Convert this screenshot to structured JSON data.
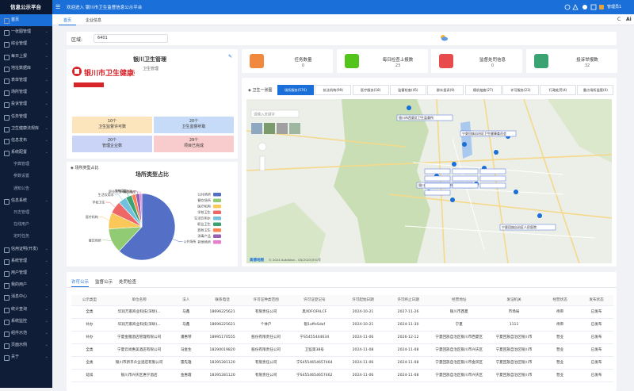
{
  "sidebar": {
    "title": "信息公示平台",
    "menu": [
      "首页",
      "一张图管理",
      "综合管理",
      "每日上报",
      "地址数据库",
      "表单管理",
      "场所管理",
      "投诉管理",
      "任务管理",
      "卫生健康法规库",
      "信息发布",
      "系统配置",
      "字典管理",
      "参数设置",
      "通知公告",
      "信息系统",
      "日志管理",
      "在线用户",
      "定时任务",
      "信用证明(开发)",
      "系统管理",
      "用户管理",
      "我的用户",
      "消息中心",
      "统计查询",
      "系统监控",
      "组件示范",
      "页面示例",
      "关于"
    ]
  },
  "header": {
    "welcome": "欢迎进入 银川市卫生监督信息公示平台",
    "user": "管理员1"
  },
  "tabs": [
    "首页",
    "企业信息"
  ],
  "filter": {
    "label": "区域:",
    "value": "6401"
  },
  "org": {
    "logo_text": "银川市卫生健康委员会",
    "name": "银川卫生管理",
    "sub": "卫生管理",
    "boxes": [
      {
        "value": "10个",
        "label": "卫生监督许可数"
      },
      {
        "value": "20个",
        "label": "卫生监督听取"
      },
      {
        "value": "20个",
        "label": "管理企业数"
      },
      {
        "value": "29个",
        "label": "项目已完成"
      }
    ]
  },
  "stats": [
    {
      "label": "任务数量",
      "value": 0
    },
    {
      "label": "每日检查上报数",
      "value": 23
    },
    {
      "label": "监督处罚信息",
      "value": 0
    },
    {
      "label": "投诉举报数",
      "value": 32
    }
  ],
  "pie_card": {
    "heading": "场所类型占比"
  },
  "chart_data": {
    "type": "pie",
    "title": "场所类型占比",
    "categories": [
      "公共场所",
      "餐饮场所",
      "医疗机构",
      "学校卫生",
      "生活饮用水",
      "职业卫生",
      "放射卫生",
      "消毒产品",
      "其他场所"
    ],
    "values": [
      62,
      12,
      8,
      6,
      4,
      3,
      2,
      2,
      1
    ],
    "colors": [
      "#5470c6",
      "#91cc75",
      "#fac858",
      "#ee6666",
      "#73c0de",
      "#3ba272",
      "#fc8452",
      "#9a60b4",
      "#ea7ccc"
    ]
  },
  "map": {
    "label": "卫生一张图",
    "tabs": [
      "场所服务(576)",
      "执法机构(99)",
      "医疗服务(18)",
      "监督检查(45)",
      "群众投诉(9)",
      "随机抽查(27)",
      "许可服务(23)",
      "行政处罚(4)",
      "重点场所监管(0)"
    ],
    "search": "请输入关键字",
    "logo": "高德地图",
    "attribution": "© 2024 AutoNavi - GS(2023)551号",
    "markers": [
      "银川市西夏区卫生监督所",
      "宁夏回族自治区卫生健康委员会",
      "银川市金凤区卫生监督所",
      "宁夏回族自治区人民医院"
    ]
  },
  "table": {
    "tabs": [
      "许可公示",
      "监督公示",
      "处罚检查"
    ],
    "columns": [
      "公示类型",
      "单位名称",
      "法人",
      "联系电话",
      "许可证种类范围",
      "许可证登记号",
      "许可起始日期",
      "许可终止日期",
      "经营地址",
      "发证机关",
      "经营状态",
      "发布状态"
    ],
    "rows": [
      [
        "全类",
        "华润万家商业科技(深圳)...",
        "马鑫",
        "18696225621",
        "有限责任公司",
        "黑XOFOFALCF",
        "2024-10-21",
        "2027-11-26",
        "银川市西夏",
        "市场局",
        "待审",
        "已发布"
      ],
      [
        "补办",
        "华润万家商业科技(深圳)...",
        "马鑫",
        "18696225621",
        "个体户",
        "银1offeSdaf",
        "2024-10-21",
        "2024-11-30",
        "宁夏",
        "1111",
        "待审",
        "已发布"
      ],
      [
        "补办",
        "宁夏金雁酒店管理有限公司",
        "潘惠琴",
        "18995170555",
        "股份有限责任公司",
        "宁S5455444634",
        "2024-11-06",
        "2026-12-12",
        "宁夏回族自治区银川市西夏区",
        "宁夏回族自治区银川市",
        "营业",
        "已发布"
      ],
      [
        "全类",
        "宁夏云尚惠美酒店有限公司",
        "马金生",
        "18290019820",
        "股份有限责任公司",
        "卫监第38号",
        "2024-11-08",
        "2024-11-08",
        "宁夏回族自治区银川市兴庆区",
        "宁夏回族自治区银川市",
        "营业",
        "已发布"
      ],
      [
        "全类",
        "银川市新丰众业酒店有限公司",
        "雷先雄",
        "18395281120",
        "有限责任公司",
        "宁S4554654657464",
        "2024-11-06",
        "2024-11-08",
        "宁夏回族自治区银川市金凤区",
        "宁夏回族自治区银川市",
        "营业",
        "已发布"
      ],
      [
        "延续",
        "银川市兴庆区惠宁酒店",
        "金惠霞",
        "18395281120",
        "有限责任公司",
        "宁S4554654657462",
        "2024-11-06",
        "2024-11-08",
        "宁夏回族自治区银川市兴庆区",
        "宁夏回族自治区银川市",
        "营业",
        "已发布"
      ]
    ]
  }
}
